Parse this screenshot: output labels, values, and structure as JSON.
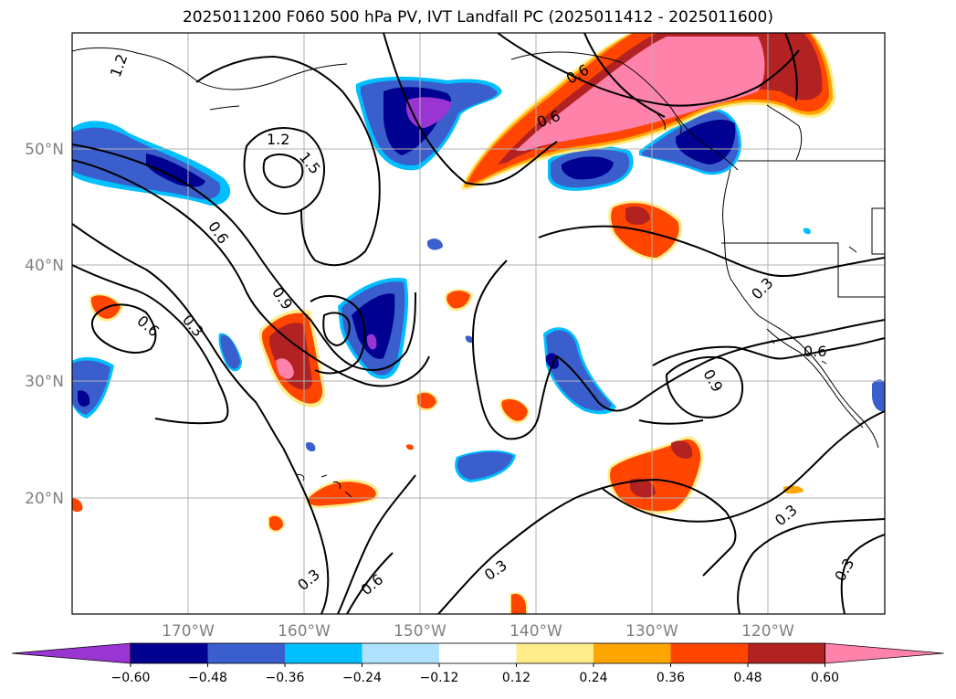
{
  "title": "2025011200 F060 500 hPa PV, IVT Landfall PC (2025011412 - 2025011600)",
  "map": {
    "lon_range": [
      -180,
      -110
    ],
    "lat_range": [
      10,
      60
    ],
    "lat_ticks": [
      {
        "value": 20,
        "label": "20°N"
      },
      {
        "value": 30,
        "label": "30°N"
      },
      {
        "value": 40,
        "label": "40°N"
      },
      {
        "value": 50,
        "label": "50°N"
      }
    ],
    "lon_ticks": [
      {
        "value": -170,
        "label": "170°W"
      },
      {
        "value": -160,
        "label": "160°W"
      },
      {
        "value": -150,
        "label": "150°W"
      },
      {
        "value": -140,
        "label": "140°W"
      },
      {
        "value": -130,
        "label": "130°W"
      },
      {
        "value": -120,
        "label": "120°W"
      }
    ],
    "grid": true
  },
  "colorbar": {
    "levels": [
      -0.6,
      -0.48,
      -0.36,
      -0.24,
      -0.12,
      0.12,
      0.24,
      0.36,
      0.48,
      0.6
    ],
    "labels": [
      "−0.60",
      "−0.48",
      "−0.36",
      "−0.24",
      "−0.12",
      "0.12",
      "0.24",
      "0.36",
      "0.48",
      "0.60"
    ],
    "colors": [
      "#9a35d4",
      "#000091",
      "#3a5fcd",
      "#00bfff",
      "#b0e2ff",
      "#ffffff",
      "#ffec8b",
      "#ffa500",
      "#ff4500",
      "#b22222",
      "#ff82ab"
    ],
    "extend": "both"
  },
  "contour_labels": [
    "1.2",
    "1.2",
    "1.5",
    "0.6",
    "0.6",
    "0.6",
    "0.9",
    "0.3",
    "0.6",
    "0.9",
    "0.3",
    "0.3",
    "0.3",
    "0.6",
    "0.3",
    "0.6",
    "0.3",
    "0.6",
    "0.3"
  ]
}
